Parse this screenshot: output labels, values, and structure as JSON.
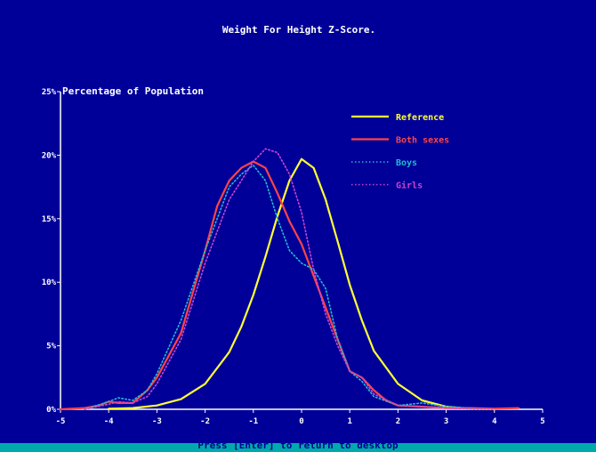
{
  "status_bar": {
    "text": "Press [Enter] to return to desktop"
  },
  "colors": {
    "background": "#000099",
    "axis": "#ffffff",
    "reference": "#ffff33",
    "both_sexes": "#ff4444",
    "boys": "#22bbcc",
    "girls": "#cc44cc",
    "status_bar": "#00aaaa"
  },
  "chart_data": {
    "type": "line",
    "title": "Weight For Height Z-Score.",
    "ylabel": "Percentage of Population",
    "xlabel": "",
    "xlim": [
      -5,
      5
    ],
    "ylim": [
      0,
      25
    ],
    "x_ticks": [
      "-5",
      "-4",
      "-3",
      "-2",
      "-1",
      "0",
      "1",
      "2",
      "3",
      "4",
      "5"
    ],
    "y_ticks": [
      "0%",
      "5%",
      "10%",
      "15%",
      "20%",
      "25%"
    ],
    "grid": false,
    "legend_position": "top-right",
    "series": [
      {
        "name": "Reference",
        "style": "solid",
        "color": "#ffff33",
        "x": [
          -4.0,
          -3.5,
          -3.0,
          -2.5,
          -2.0,
          -1.5,
          -1.25,
          -1.0,
          -0.75,
          -0.5,
          -0.25,
          0.0,
          0.25,
          0.5,
          0.75,
          1.0,
          1.25,
          1.5,
          2.0,
          2.5,
          3.0,
          3.5,
          4.0
        ],
        "y": [
          0.05,
          0.1,
          0.3,
          0.8,
          2.0,
          4.5,
          6.5,
          9.0,
          12.0,
          15.2,
          18.0,
          19.7,
          19.0,
          16.5,
          13.2,
          9.8,
          7.0,
          4.6,
          2.0,
          0.7,
          0.2,
          0.05,
          0.0
        ]
      },
      {
        "name": "Both sexes",
        "style": "solid",
        "color": "#ff4444",
        "x": [
          -5.0,
          -4.5,
          -4.2,
          -4.0,
          -3.8,
          -3.5,
          -3.2,
          -3.0,
          -2.5,
          -2.0,
          -1.75,
          -1.5,
          -1.25,
          -1.0,
          -0.75,
          -0.5,
          -0.25,
          0.0,
          0.25,
          0.5,
          0.75,
          1.0,
          1.25,
          1.5,
          1.75,
          2.0,
          2.5,
          3.0,
          3.5,
          4.0,
          4.5
        ],
        "y": [
          0.0,
          0.1,
          0.3,
          0.6,
          0.5,
          0.5,
          1.5,
          2.5,
          6.0,
          12.5,
          16.0,
          18.0,
          19.0,
          19.5,
          19.0,
          17.0,
          14.8,
          13.0,
          10.5,
          8.0,
          5.5,
          3.0,
          2.5,
          1.5,
          0.7,
          0.3,
          0.2,
          0.1,
          0.1,
          0.05,
          0.1
        ]
      },
      {
        "name": "Boys",
        "style": "dotted",
        "color": "#22bbcc",
        "x": [
          -4.5,
          -4.0,
          -3.8,
          -3.5,
          -3.2,
          -3.0,
          -2.5,
          -2.0,
          -1.5,
          -1.25,
          -1.0,
          -0.75,
          -0.5,
          -0.25,
          0.0,
          0.25,
          0.5,
          0.75,
          1.0,
          1.25,
          1.5,
          2.0,
          2.5,
          3.0,
          3.5,
          4.0
        ],
        "y": [
          0.0,
          0.6,
          0.9,
          0.7,
          1.5,
          2.8,
          7.0,
          12.5,
          17.5,
          18.5,
          19.2,
          18.0,
          15.0,
          12.5,
          11.5,
          11.0,
          9.5,
          5.5,
          3.0,
          2.2,
          1.0,
          0.3,
          0.5,
          0.2,
          0.1,
          0.0
        ]
      },
      {
        "name": "Girls",
        "style": "dotted",
        "color": "#cc44cc",
        "x": [
          -4.5,
          -4.0,
          -3.8,
          -3.5,
          -3.2,
          -3.0,
          -2.5,
          -2.0,
          -1.5,
          -1.25,
          -1.0,
          -0.75,
          -0.5,
          -0.25,
          0.0,
          0.25,
          0.5,
          0.75,
          1.0,
          1.25,
          1.5,
          2.0,
          2.5,
          3.0,
          3.5,
          4.0
        ],
        "y": [
          0.0,
          0.4,
          0.6,
          0.5,
          1.0,
          2.0,
          5.5,
          11.5,
          16.5,
          18.0,
          19.5,
          20.5,
          20.2,
          18.5,
          15.5,
          11.0,
          7.5,
          5.0,
          3.0,
          2.5,
          1.2,
          0.3,
          0.2,
          0.1,
          0.05,
          0.0
        ]
      }
    ]
  }
}
